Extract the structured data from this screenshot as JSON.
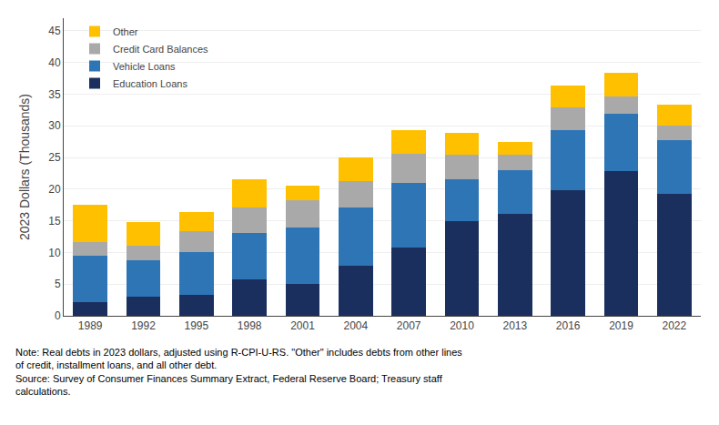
{
  "chart_data": {
    "type": "bar",
    "stacked": true,
    "categories": [
      "1989",
      "1992",
      "1995",
      "1998",
      "2001",
      "2004",
      "2007",
      "2010",
      "2013",
      "2016",
      "2019",
      "2022"
    ],
    "series": [
      {
        "name": "Education Loans",
        "color": "#1a2f5e",
        "values": [
          2.2,
          3.0,
          3.3,
          5.7,
          5.0,
          7.9,
          10.8,
          14.9,
          16.1,
          19.8,
          22.8,
          19.3
        ]
      },
      {
        "name": "Vehicle Loans",
        "color": "#2e75b6",
        "values": [
          7.3,
          5.8,
          6.8,
          7.4,
          9.0,
          9.2,
          10.2,
          6.7,
          6.9,
          9.5,
          9.1,
          8.4
        ]
      },
      {
        "name": "Credit Card Balances",
        "color": "#a9a9a9",
        "values": [
          2.1,
          2.2,
          3.3,
          4.0,
          4.3,
          4.2,
          4.6,
          3.8,
          2.5,
          3.6,
          2.8,
          2.4
        ]
      },
      {
        "name": "Other",
        "color": "#ffc000",
        "values": [
          5.9,
          3.8,
          3.0,
          4.4,
          2.2,
          3.7,
          3.7,
          3.5,
          2.0,
          3.5,
          3.7,
          3.3
        ]
      }
    ],
    "ylabel": "2023 Dollars (Thousands)",
    "ylim": [
      0,
      47
    ],
    "yticks": [
      0,
      5,
      10,
      15,
      20,
      25,
      30,
      35,
      40,
      45
    ],
    "grid": true,
    "legend": "upper left",
    "annotations": [
      "Note: Real debts in 2023 dollars, adjusted using R-CPI-U-RS. \"Other\" includes debts from other lines",
      "of credit, installment loans, and all other debt.",
      "Source: Survey of Consumer Finances Summary Extract, Federal Reserve Board; Treasury staff",
      "calculations."
    ]
  }
}
